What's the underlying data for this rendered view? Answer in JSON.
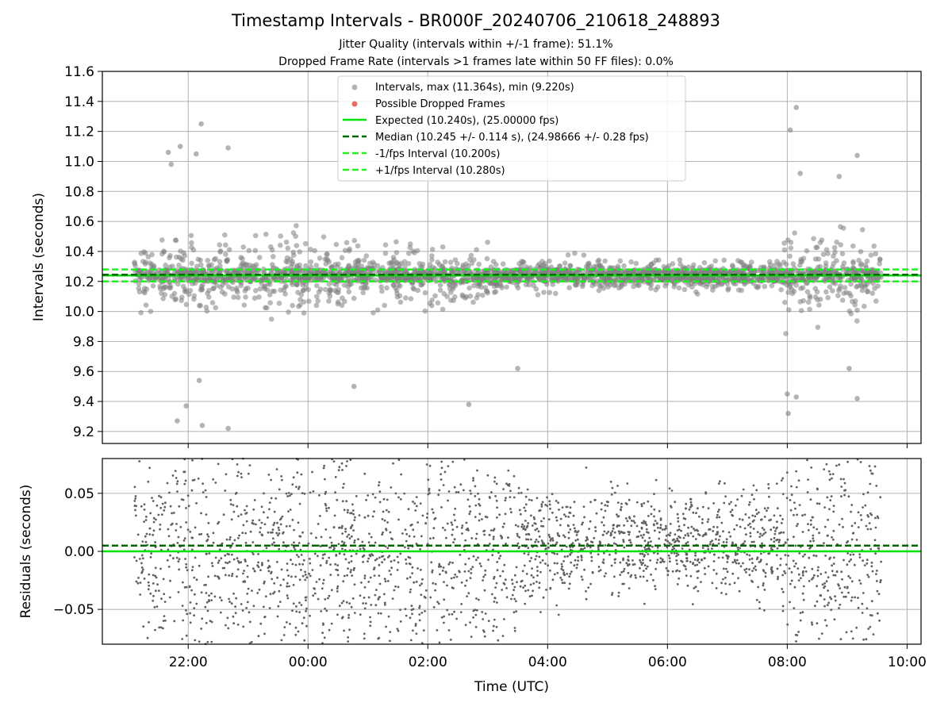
{
  "title": "Timestamp Intervals - BR000F_20240706_210618_248893",
  "subtitle_1": "Jitter Quality (intervals within +/-1 frame): 51.1%",
  "subtitle_2": "Dropped Frame Rate (intervals >1 frames late within 50 FF files): 0.0%",
  "colors": {
    "intervals": "#808080",
    "dropped": "#e8453c",
    "expected": "#00e400",
    "median": "#006400",
    "fps_interval": "#22ee22",
    "grid": "#b0b0b0",
    "residuals": "#606060"
  },
  "chart_data": [
    {
      "type": "scatter",
      "ylabel": "Intervals (seconds)",
      "xlim": [
        "20:34",
        "10:14"
      ],
      "ylim": [
        9.12,
        11.6
      ],
      "yticks": [
        "9.2",
        "9.4",
        "9.6",
        "9.8",
        "10.0",
        "10.2",
        "10.4",
        "10.6",
        "10.8",
        "11.0",
        "11.2",
        "11.4",
        "11.6"
      ],
      "grid": true,
      "legend_position": "upper-center",
      "data_time_range": [
        "21:06",
        "09:34"
      ],
      "expected": 10.24,
      "median": 10.245,
      "minus_fps": 10.2,
      "plus_fps": 10.28,
      "max": 11.364,
      "min": 9.22,
      "legend": [
        {
          "label": "Intervals, max (11.364s), min (9.220s)",
          "icon": "grey-dot"
        },
        {
          "label": "Possible Dropped Frames",
          "icon": "red-dot"
        },
        {
          "label": "Expected (10.240s), (25.00000 fps)",
          "icon": "green-solid-line"
        },
        {
          "label": "Median (10.245 +/- 0.114 s), (24.98666 +/- 0.28 fps)",
          "icon": "dark-green-dashed-line"
        },
        {
          "label": "-1/fps Interval (10.200s)",
          "icon": "green-dashed-line"
        },
        {
          "label": "+1/fps Interval (10.280s)",
          "icon": "green-dashed-line"
        }
      ],
      "outliers": [
        {
          "x": "21:40",
          "y": 11.06
        },
        {
          "x": "21:43",
          "y": 10.98
        },
        {
          "x": "21:52",
          "y": 11.1
        },
        {
          "x": "22:08",
          "y": 11.05
        },
        {
          "x": "22:13",
          "y": 11.25
        },
        {
          "x": "22:40",
          "y": 11.09
        },
        {
          "x": "21:49",
          "y": 9.27
        },
        {
          "x": "22:14",
          "y": 9.24
        },
        {
          "x": "22:40",
          "y": 9.22
        },
        {
          "x": "21:58",
          "y": 9.37
        },
        {
          "x": "22:11",
          "y": 9.54
        },
        {
          "x": "00:46",
          "y": 9.5
        },
        {
          "x": "02:41",
          "y": 9.38
        },
        {
          "x": "03:30",
          "y": 9.62
        },
        {
          "x": "08:00",
          "y": 9.45
        },
        {
          "x": "08:01",
          "y": 9.32
        },
        {
          "x": "08:09",
          "y": 9.43
        },
        {
          "x": "08:03",
          "y": 11.21
        },
        {
          "x": "08:09",
          "y": 11.36
        },
        {
          "x": "09:10",
          "y": 11.04
        },
        {
          "x": "09:10",
          "y": 9.42
        },
        {
          "x": "08:52",
          "y": 10.9
        },
        {
          "x": "08:13",
          "y": 10.92
        },
        {
          "x": "09:02",
          "y": 9.62
        }
      ]
    },
    {
      "type": "scatter",
      "xlabel": "Time (UTC)",
      "ylabel": "Residuals (seconds)",
      "ylim": [
        -0.08,
        0.08
      ],
      "yticks": [
        "−0.05",
        "0.00",
        "0.05"
      ],
      "xticks": [
        "22:00",
        "00:00",
        "02:00",
        "04:00",
        "06:00",
        "08:00",
        "10:00"
      ],
      "grid": true,
      "zero_line": 0.0,
      "median_offset": 0.005
    }
  ]
}
